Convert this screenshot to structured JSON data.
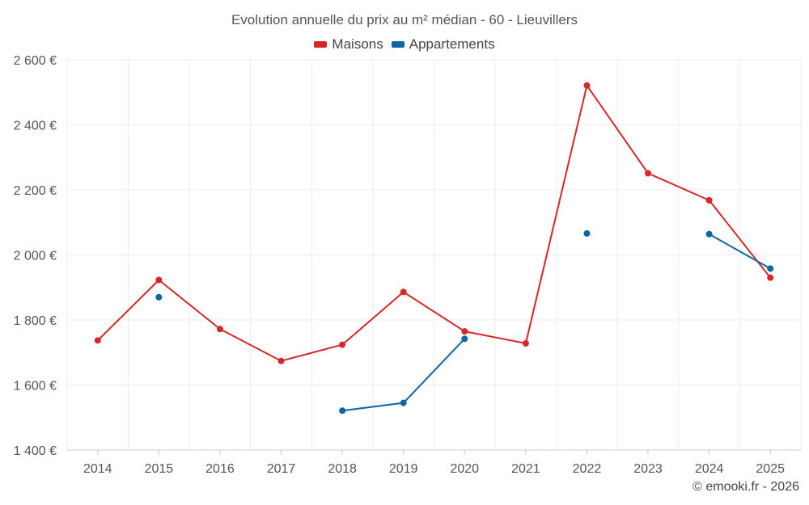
{
  "chart_data": {
    "type": "line",
    "title": "Evolution annuelle du prix au m² médian - 60 - Lieuvillers",
    "xlabel": "",
    "ylabel": "",
    "x": [
      2014,
      2015,
      2016,
      2017,
      2018,
      2019,
      2020,
      2021,
      2022,
      2023,
      2024,
      2025
    ],
    "x_tick_labels": [
      "2014",
      "2015",
      "2016",
      "2017",
      "2018",
      "2019",
      "2020",
      "2021",
      "2022",
      "2023",
      "2024",
      "2025"
    ],
    "ylim": [
      1400,
      2600
    ],
    "y_ticks": [
      1400,
      1600,
      1800,
      2000,
      2200,
      2400,
      2600
    ],
    "y_tick_labels": [
      "1 400 €",
      "1 600 €",
      "1 800 €",
      "2 000 €",
      "2 200 €",
      "2 400 €",
      "2 600 €"
    ],
    "grid": true,
    "legend_position": "top-center",
    "series": [
      {
        "name": "Maisons",
        "color": "#d62728",
        "values": [
          1737,
          1923,
          1772,
          1674,
          1724,
          1886,
          1765,
          1728,
          2521,
          2251,
          2168,
          1930
        ]
      },
      {
        "name": "Appartements",
        "color": "#0a67a3",
        "values": [
          null,
          1870,
          null,
          null,
          1521,
          1545,
          1742,
          null,
          2066,
          null,
          2064,
          1958
        ]
      }
    ]
  },
  "footer": {
    "credit": "© emooki.fr - 2026"
  }
}
